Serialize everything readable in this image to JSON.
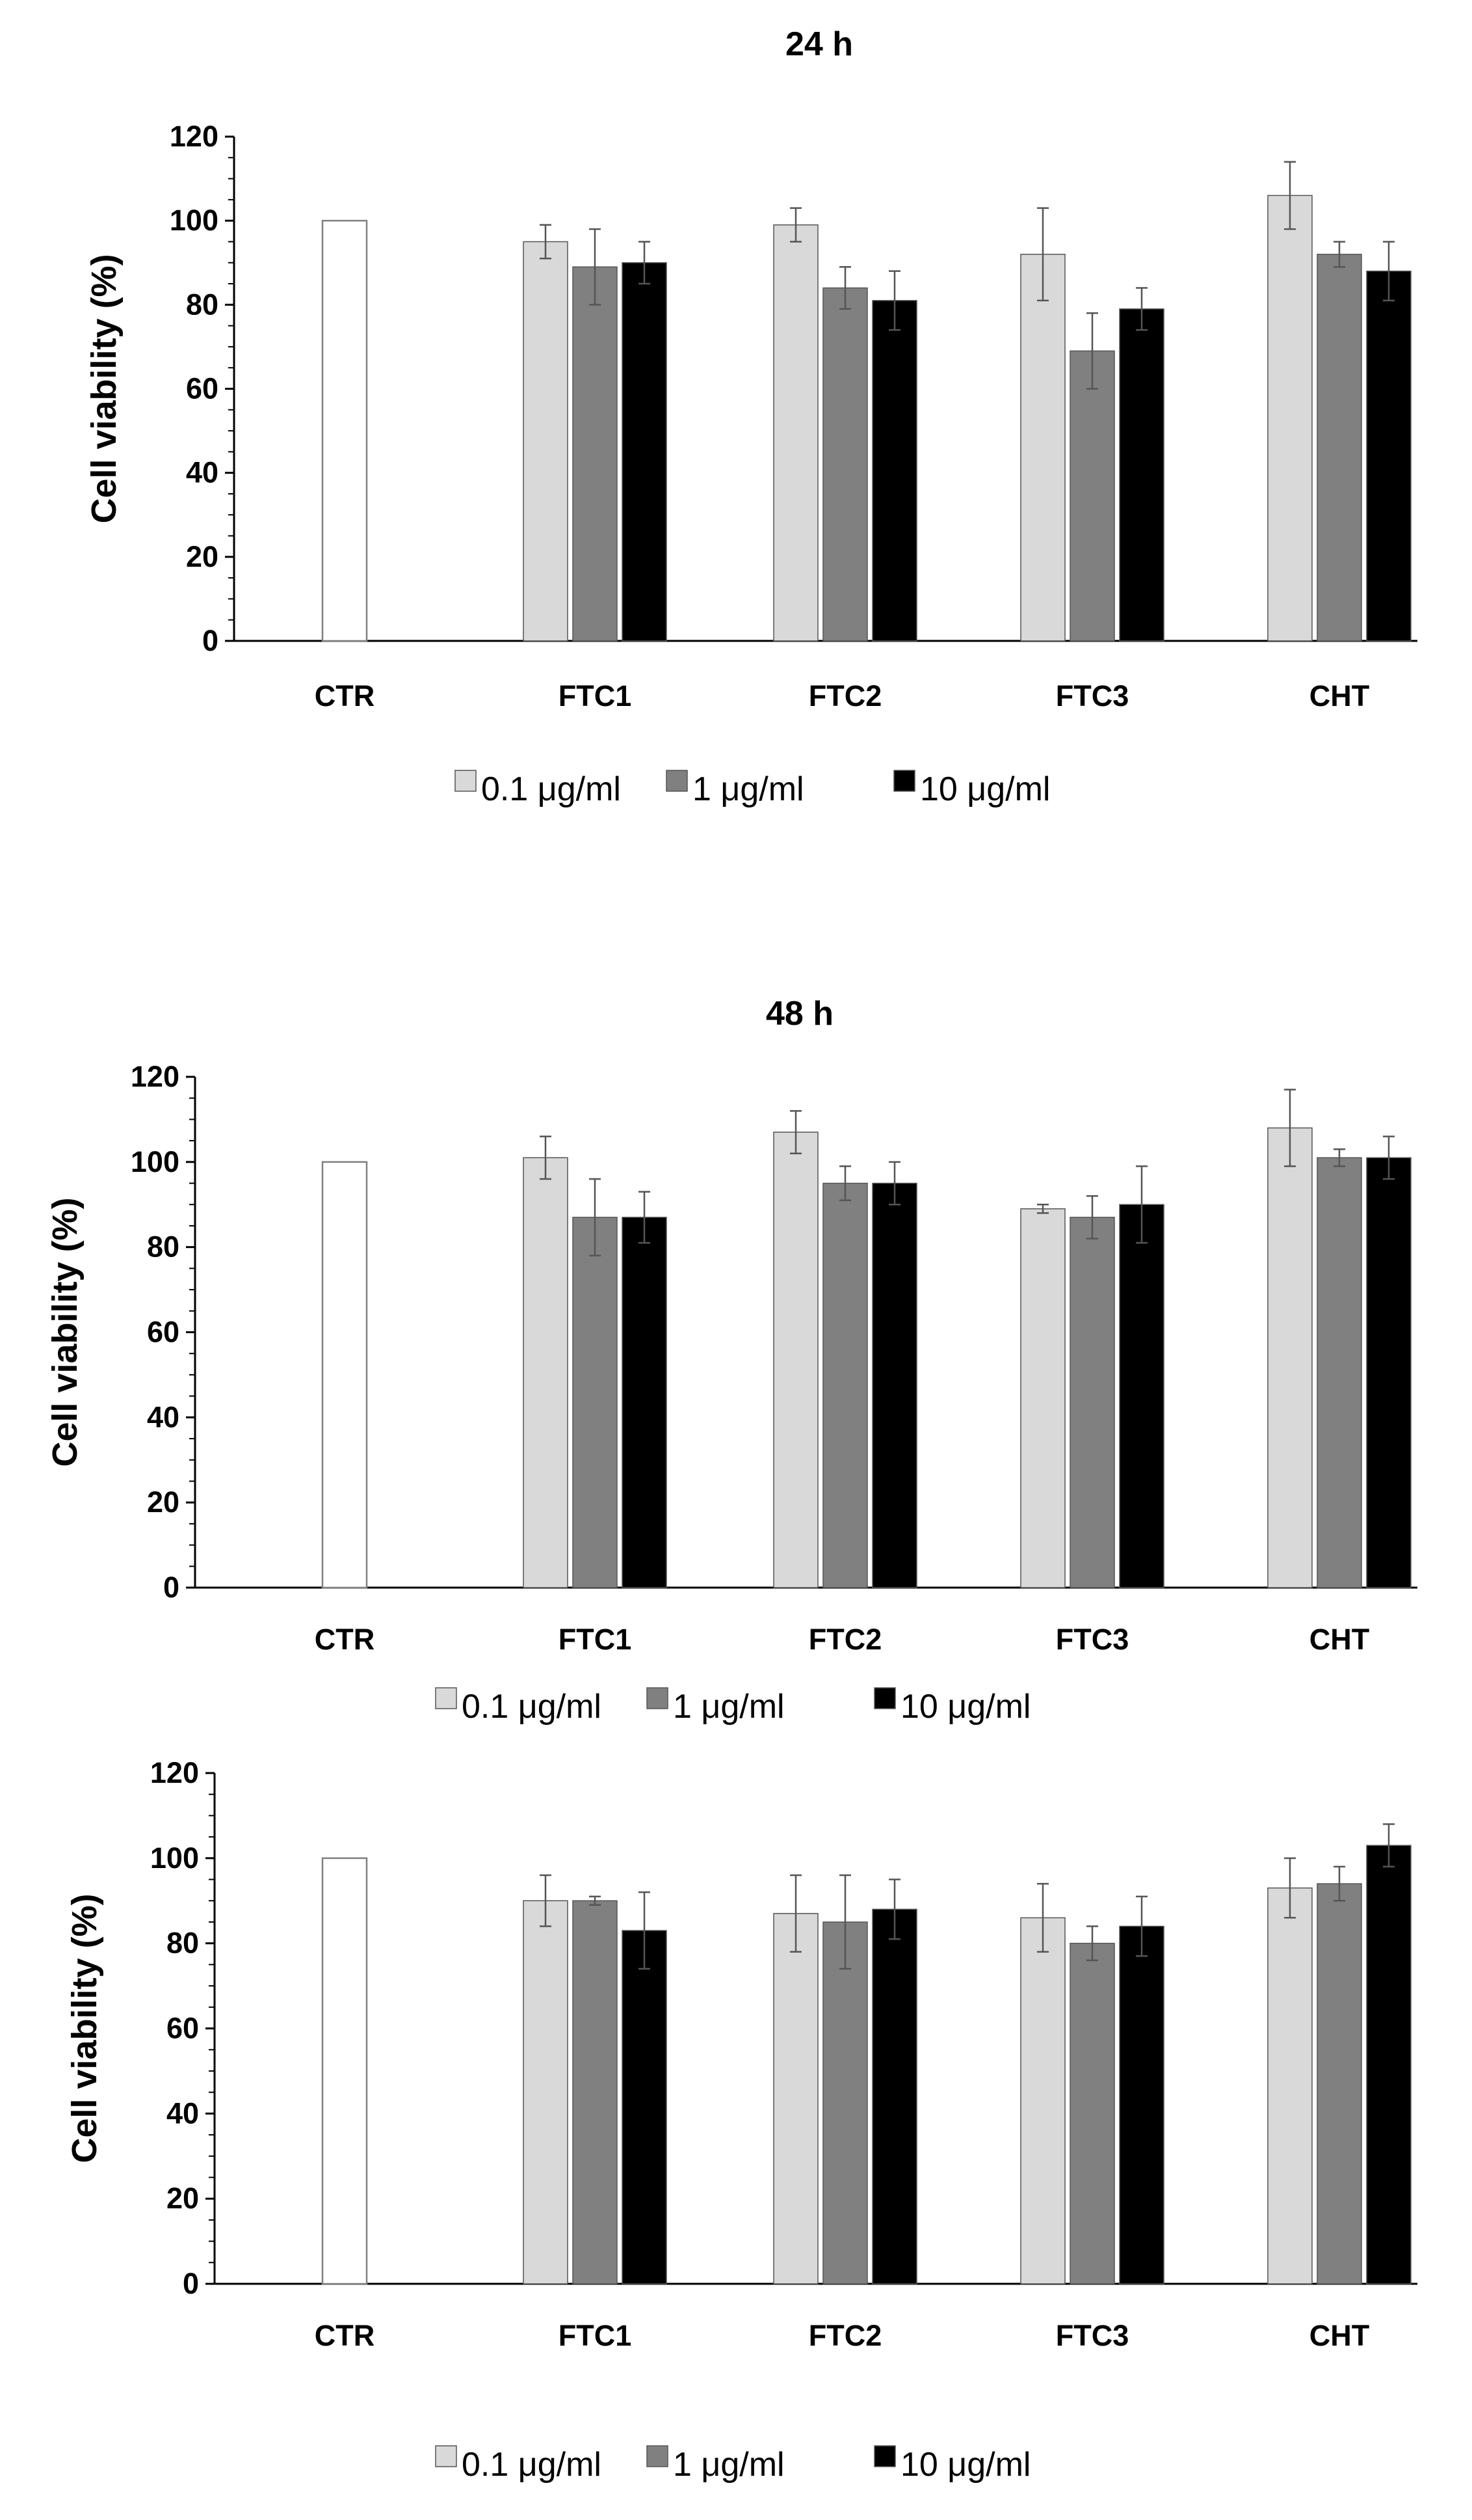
{
  "chart_data": [
    {
      "type": "bar",
      "title": "24 h",
      "ylabel": "Cell viability (%)",
      "ylim": [
        0,
        120
      ],
      "yticks": [
        0,
        20,
        40,
        60,
        80,
        100,
        120
      ],
      "categories": [
        "CTR",
        "FTC1",
        "FTC2",
        "FTC3",
        "CHT"
      ],
      "control": {
        "category": "CTR",
        "value": 100
      },
      "series": [
        {
          "name": "0.1 μg/ml",
          "color": "#d9d9d9",
          "values": [
            null,
            95,
            99,
            92,
            106
          ],
          "errors": [
            null,
            4,
            4,
            11,
            8
          ]
        },
        {
          "name": "1  μg/ml",
          "color": "#808080",
          "values": [
            null,
            89,
            84,
            69,
            92
          ],
          "errors": [
            null,
            9,
            5,
            9,
            3
          ]
        },
        {
          "name": "10  μg/ml",
          "color": "#000000",
          "values": [
            null,
            90,
            81,
            79,
            88
          ],
          "errors": [
            null,
            5,
            7,
            5,
            7
          ]
        }
      ],
      "legend_position": "bottom-center",
      "grid": false
    },
    {
      "type": "bar",
      "title": "48 h",
      "ylabel": "Cell viability (%)",
      "ylim": [
        0,
        120
      ],
      "yticks": [
        0,
        20,
        40,
        60,
        80,
        100,
        120
      ],
      "categories": [
        "CTR",
        "FTC1",
        "FTC2",
        "FTC3",
        "CHT"
      ],
      "control": {
        "category": "CTR",
        "value": 100
      },
      "series": [
        {
          "name": "0.1 μg/ml",
          "color": "#d9d9d9",
          "values": [
            null,
            101,
            107,
            89,
            108
          ],
          "errors": [
            null,
            5,
            5,
            1,
            9
          ]
        },
        {
          "name": "1  μg/ml",
          "color": "#808080",
          "values": [
            null,
            87,
            95,
            87,
            101
          ],
          "errors": [
            null,
            9,
            4,
            5,
            2
          ]
        },
        {
          "name": "10  μg/ml",
          "color": "#000000",
          "values": [
            null,
            87,
            95,
            90,
            101
          ],
          "errors": [
            null,
            6,
            5,
            9,
            5
          ]
        }
      ],
      "legend_position": "bottom-center",
      "grid": false
    },
    {
      "type": "bar",
      "title": "",
      "ylabel": "Cell viability (%)",
      "ylim": [
        0,
        120
      ],
      "yticks": [
        0,
        20,
        40,
        60,
        80,
        100,
        120
      ],
      "categories": [
        "CTR",
        "FTC1",
        "FTC2",
        "FTC3",
        "CHT"
      ],
      "control": {
        "category": "CTR",
        "value": 100
      },
      "series": [
        {
          "name": "0.1 μg/ml",
          "color": "#d9d9d9",
          "values": [
            null,
            90,
            87,
            86,
            93
          ],
          "errors": [
            null,
            6,
            9,
            8,
            7
          ]
        },
        {
          "name": "1  μg/ml",
          "color": "#808080",
          "values": [
            null,
            90,
            85,
            80,
            94
          ],
          "errors": [
            null,
            1,
            11,
            4,
            4
          ]
        },
        {
          "name": "10  μg/ml",
          "color": "#000000",
          "values": [
            null,
            83,
            88,
            84,
            103
          ],
          "errors": [
            null,
            9,
            7,
            7,
            5
          ]
        }
      ],
      "legend_position": "bottom-center",
      "grid": false
    }
  ]
}
